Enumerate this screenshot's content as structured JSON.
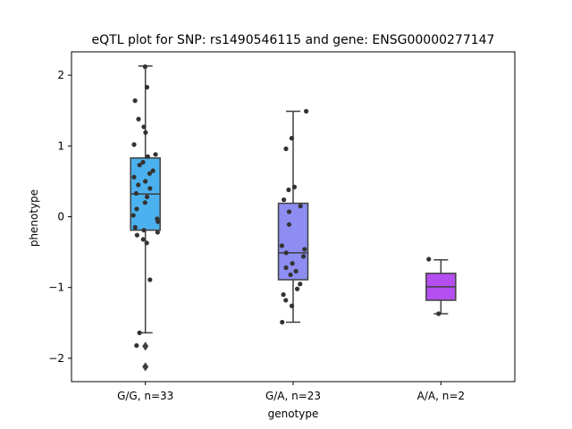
{
  "chart_data": {
    "type": "box",
    "title": "eQTL plot for SNP: rs1490546115 and gene: ENSG00000277147",
    "xlabel": "genotype",
    "ylabel": "phenotype",
    "ylim": [
      -2.33,
      2.33
    ],
    "yticks": [
      -2,
      -1,
      0,
      1,
      2
    ],
    "ytick_labels": [
      "−2",
      "−1",
      "0",
      "1",
      "2"
    ],
    "grid": false,
    "categories": [
      "G/G, n=33",
      "G/A, n=23",
      "A/A, n=2"
    ],
    "boxes": [
      {
        "label": "G/G, n=33",
        "color": "#4bb1ee",
        "q1": -0.19,
        "median": 0.32,
        "q3": 0.83,
        "whisker_low": -1.64,
        "whisker_high": 2.13,
        "outliers": [
          -1.83,
          -2.12
        ],
        "points": [
          2.12,
          1.83,
          1.64,
          1.38,
          1.27,
          1.19,
          1.02,
          0.88,
          0.85,
          0.77,
          0.73,
          0.65,
          0.61,
          0.56,
          0.5,
          0.45,
          0.4,
          0.33,
          0.28,
          0.2,
          0.11,
          0.02,
          -0.03,
          -0.07,
          -0.15,
          -0.19,
          -0.22,
          -0.26,
          -0.32,
          -0.37,
          -0.89,
          -1.64,
          -1.82
        ]
      },
      {
        "label": "G/A, n=23",
        "color": "#8d8df2",
        "q1": -0.89,
        "median": -0.51,
        "q3": 0.19,
        "whisker_low": -1.49,
        "whisker_high": 1.49,
        "outliers": [],
        "points": [
          1.49,
          1.11,
          0.96,
          0.42,
          0.38,
          0.24,
          0.15,
          0.07,
          -0.11,
          -0.41,
          -0.46,
          -0.51,
          -0.56,
          -0.66,
          -0.72,
          -0.77,
          -0.82,
          -0.95,
          -1.02,
          -1.1,
          -1.18,
          -1.26,
          -1.49
        ]
      },
      {
        "label": "A/A, n=2",
        "color": "#b54ef0",
        "q1": -1.18,
        "median": -0.99,
        "q3": -0.8,
        "whisker_low": -1.37,
        "whisker_high": -0.61,
        "outliers": [],
        "points": [
          -0.6,
          -1.37
        ]
      }
    ]
  }
}
